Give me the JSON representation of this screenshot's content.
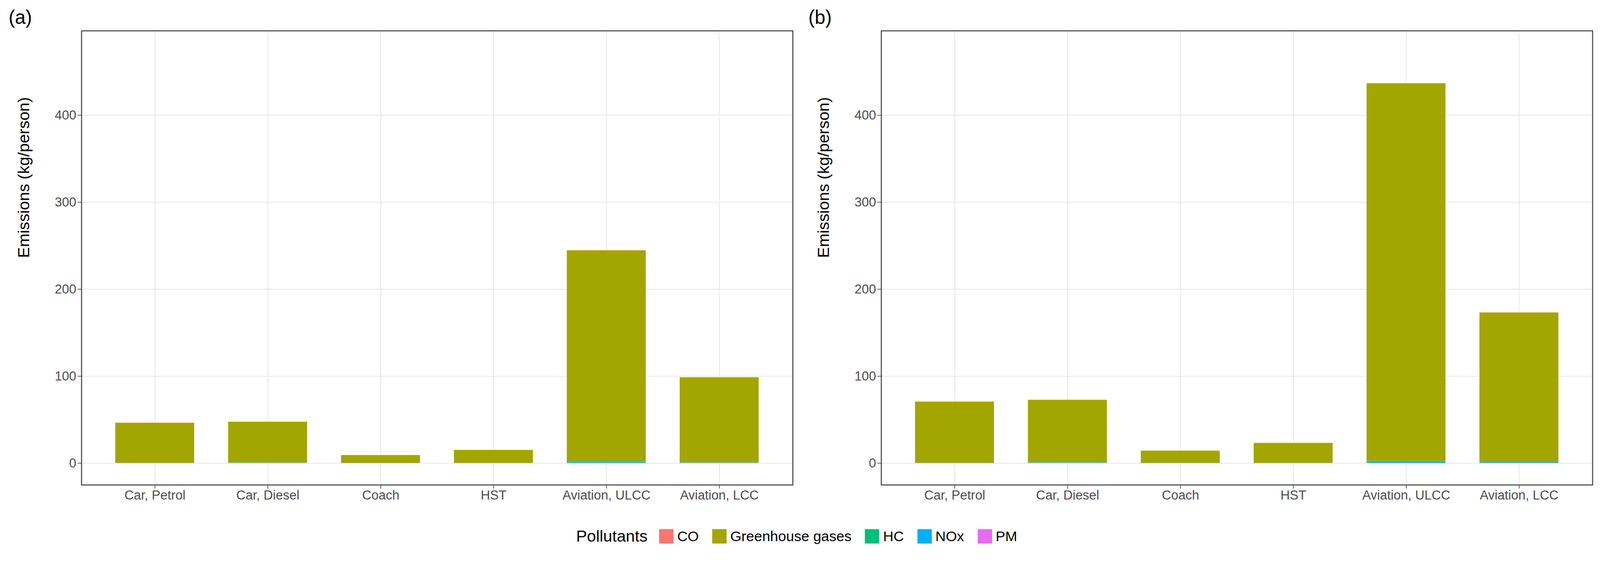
{
  "chart_data": [
    {
      "type": "bar",
      "title": "(a)",
      "y_label": "Emissions (kg/person)",
      "stacked": true,
      "grid": true,
      "legend": "bottom",
      "legend_title": "Pollutants",
      "categories": [
        "Car, Petrol",
        "Car, Diesel",
        "Coach",
        "HST",
        "Aviation, ULCC",
        "Aviation, LCC"
      ],
      "ylim": [
        -25,
        497
      ],
      "yticks": [
        0,
        100,
        200,
        300,
        400
      ],
      "series": [
        {
          "name": "CO",
          "color": "#F8766D",
          "values": [
            0.3,
            0.05,
            0.02,
            0.01,
            0.3,
            0.1
          ]
        },
        {
          "name": "Greenhouse gases",
          "color": "#A3A500",
          "values": [
            46,
            47,
            9,
            15,
            243,
            98
          ]
        },
        {
          "name": "HC",
          "color": "#00BF7D",
          "values": [
            0.05,
            0.01,
            0.01,
            0.005,
            0.05,
            0.02
          ]
        },
        {
          "name": "NOx",
          "color": "#00B0F6",
          "values": [
            0.1,
            0.4,
            0.1,
            0.05,
            1.2,
            0.5
          ]
        },
        {
          "name": "PM",
          "color": "#E76BF3",
          "values": [
            0.01,
            0.02,
            0.005,
            0.005,
            0.02,
            0.01
          ]
        }
      ]
    },
    {
      "type": "bar",
      "title": "(b)",
      "y_label": "Emissions (kg/person)",
      "stacked": true,
      "grid": true,
      "legend": "bottom",
      "legend_title": "Pollutants",
      "categories": [
        "Car, Petrol",
        "Car, Diesel",
        "Coach",
        "HST",
        "Aviation, ULCC",
        "Aviation, LCC"
      ],
      "ylim": [
        -25,
        497
      ],
      "yticks": [
        0,
        100,
        200,
        300,
        400
      ],
      "series": [
        {
          "name": "CO",
          "color": "#F8766D",
          "values": [
            0.5,
            0.1,
            0.03,
            0.02,
            0.5,
            0.2
          ]
        },
        {
          "name": "Greenhouse gases",
          "color": "#A3A500",
          "values": [
            70,
            72,
            14,
            23,
            434,
            172
          ]
        },
        {
          "name": "HC",
          "color": "#00BF7D",
          "values": [
            0.08,
            0.02,
            0.01,
            0.01,
            0.08,
            0.03
          ]
        },
        {
          "name": "NOx",
          "color": "#00B0F6",
          "values": [
            0.15,
            0.6,
            0.15,
            0.08,
            2,
            0.8
          ]
        },
        {
          "name": "PM",
          "color": "#E76BF3",
          "values": [
            0.02,
            0.03,
            0.01,
            0.01,
            0.04,
            0.02
          ]
        }
      ]
    }
  ]
}
